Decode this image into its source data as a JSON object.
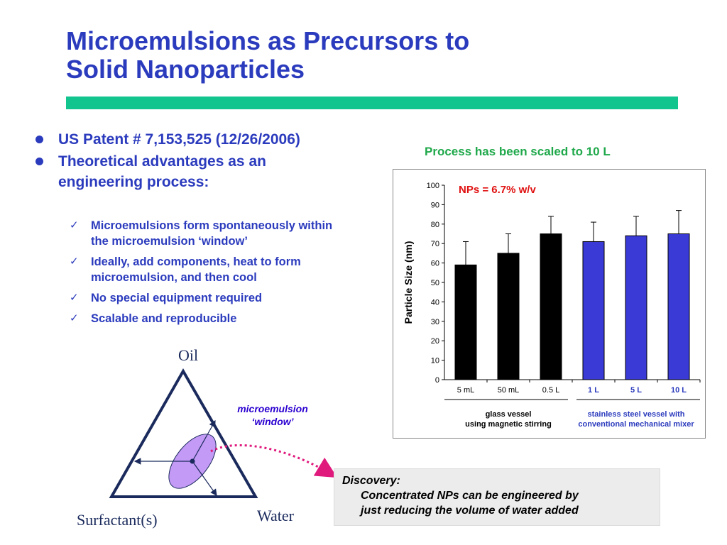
{
  "slide": {
    "title_line1": "Microemulsions as Precursors to",
    "title_line2": "Solid Nanoparticles"
  },
  "bullets": [
    "US Patent # 7,153,525 (12/26/2006)",
    "Theoretical advantages as an engineering process:"
  ],
  "checks": [
    "Microemulsions form spontaneously within the microemulsion ‘window’",
    "Ideally, add components, heat to form microemulsion, and then cool",
    "No special equipment required",
    "Scalable and reproducible"
  ],
  "chart_heading": "Process has been scaled to 10 L",
  "np_label": "NPs = 6.7% w/v",
  "chart_data": {
    "type": "bar",
    "categories": [
      "5 mL",
      "50 mL",
      "0.5 L",
      "1 L",
      "5 L",
      "10 L"
    ],
    "values": [
      59,
      65,
      75,
      71,
      74,
      75
    ],
    "error_plus": [
      12,
      10,
      9,
      10,
      10,
      12
    ],
    "bar_colors": [
      "#000000",
      "#000000",
      "#000000",
      "#3a3ad6",
      "#3a3ad6",
      "#3a3ad6"
    ],
    "ylabel": "Particle Size (nm)",
    "ylim": [
      0,
      100
    ],
    "yticks": [
      0,
      10,
      20,
      30,
      40,
      50,
      60,
      70,
      80,
      90,
      100
    ],
    "groups": [
      {
        "line1": "glass vessel",
        "line2": "using magnetic stirring",
        "color": "#000000"
      },
      {
        "line1": "stainless steel vessel with",
        "line2": "conventional mechanical mixer",
        "color": "#2b3bbd"
      }
    ]
  },
  "diagram": {
    "oil": "Oil",
    "surfactant": "Surfactant(s)",
    "water": "Water",
    "window_line1": "microemulsion",
    "window_line2": "‘window’",
    "ellipse_color": "#c39af5"
  },
  "discovery": {
    "heading": "Discovery:",
    "line1": "Concentrated NPs can be engineered by",
    "line2": "just reducing the volume of water added"
  }
}
